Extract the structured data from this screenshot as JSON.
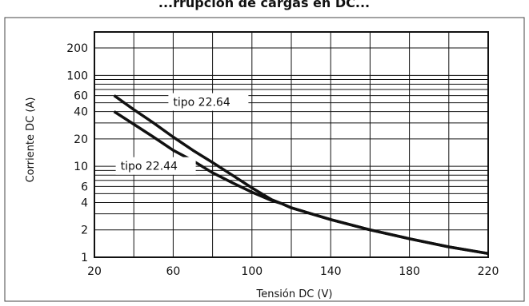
{
  "chart_data": {
    "type": "line",
    "title": "...rrupción de cargas en DC... (parcialmente visible)",
    "xlabel": "Tensión DC (V)",
    "ylabel": "Corriente DC (A)",
    "xlim": [
      20,
      220
    ],
    "ylim": [
      1,
      300
    ],
    "y_scale": "log",
    "grid": true,
    "x_ticks": [
      20,
      60,
      100,
      140,
      180,
      220
    ],
    "x_tick_labels": [
      "20",
      "60",
      "100",
      "140",
      "180",
      "220"
    ],
    "y_ticks": [
      1,
      2,
      4,
      6,
      10,
      20,
      40,
      60,
      100,
      200
    ],
    "y_tick_labels": [
      "1",
      "2",
      "4",
      "6",
      "10",
      "20",
      "40",
      "60",
      "100",
      "200"
    ],
    "series": [
      {
        "name": "tipo 22.64",
        "x": [
          30,
          40,
          50,
          60,
          70,
          80,
          90,
          100,
          110,
          115,
          120,
          140,
          160,
          180,
          200,
          220
        ],
        "y": [
          60,
          42,
          30,
          21,
          15,
          11,
          8,
          5.8,
          4.3,
          3.9,
          3.5,
          2.6,
          2.0,
          1.6,
          1.3,
          1.1
        ]
      },
      {
        "name": "tipo 22.44",
        "x": [
          30,
          40,
          50,
          60,
          70,
          80,
          90,
          100,
          110,
          115,
          120,
          140,
          160,
          180,
          200,
          220
        ],
        "y": [
          40,
          29,
          21,
          15,
          11.5,
          8.5,
          6.6,
          5.2,
          4.2,
          3.9,
          3.5,
          2.6,
          2.0,
          1.6,
          1.3,
          1.1
        ]
      }
    ]
  },
  "title_text": "...rrupción de cargas en DC..."
}
